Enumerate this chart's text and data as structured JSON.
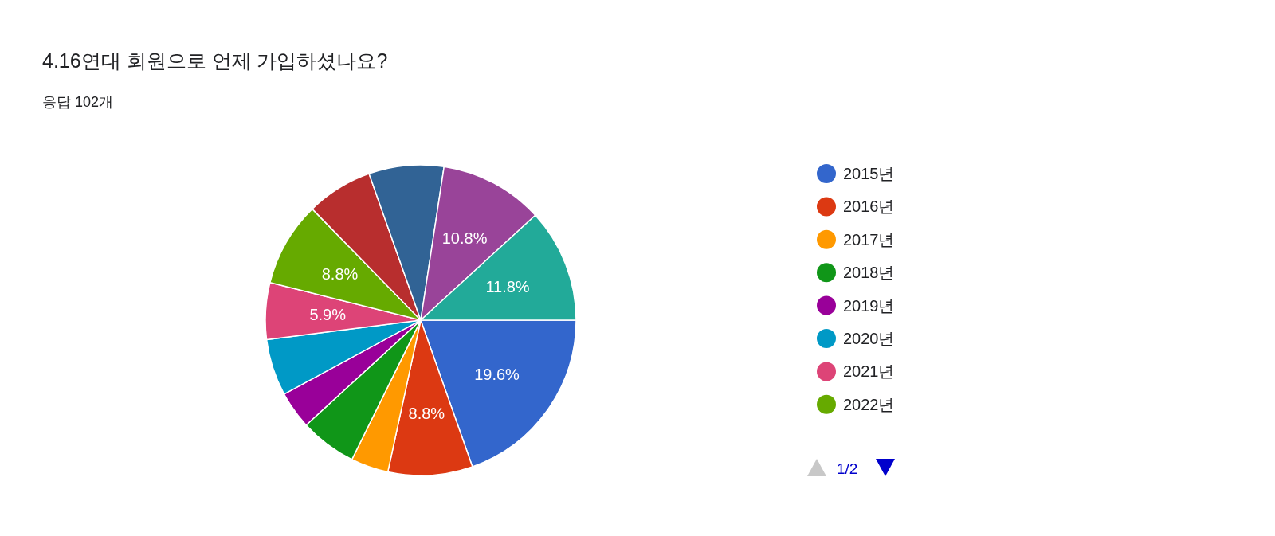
{
  "chart_data": {
    "type": "pie",
    "title": "4.16연대 회원으로 언제 가입하셨나요?",
    "subtitle": "응답 102개",
    "categories": [
      "2015년",
      "2016년",
      "2017년",
      "2018년",
      "2019년",
      "2020년",
      "2021년",
      "2022년",
      null,
      null,
      null,
      null
    ],
    "values": [
      19.6,
      8.8,
      3.9,
      5.9,
      3.9,
      5.9,
      5.9,
      8.8,
      6.9,
      7.8,
      10.8,
      11.8
    ],
    "colors": [
      "#3366cc",
      "#dc3912",
      "#ff9900",
      "#109618",
      "#990099",
      "#0099c6",
      "#dd4477",
      "#66aa00",
      "#b82e2e",
      "#316395",
      "#994499",
      "#22aa99"
    ],
    "value_labels": [
      "19.6%",
      "8.8%",
      null,
      null,
      null,
      null,
      "5.9%",
      "8.8%",
      null,
      null,
      "10.8%",
      "11.8%"
    ],
    "legend": "right",
    "annotations": [
      "1/2"
    ]
  }
}
